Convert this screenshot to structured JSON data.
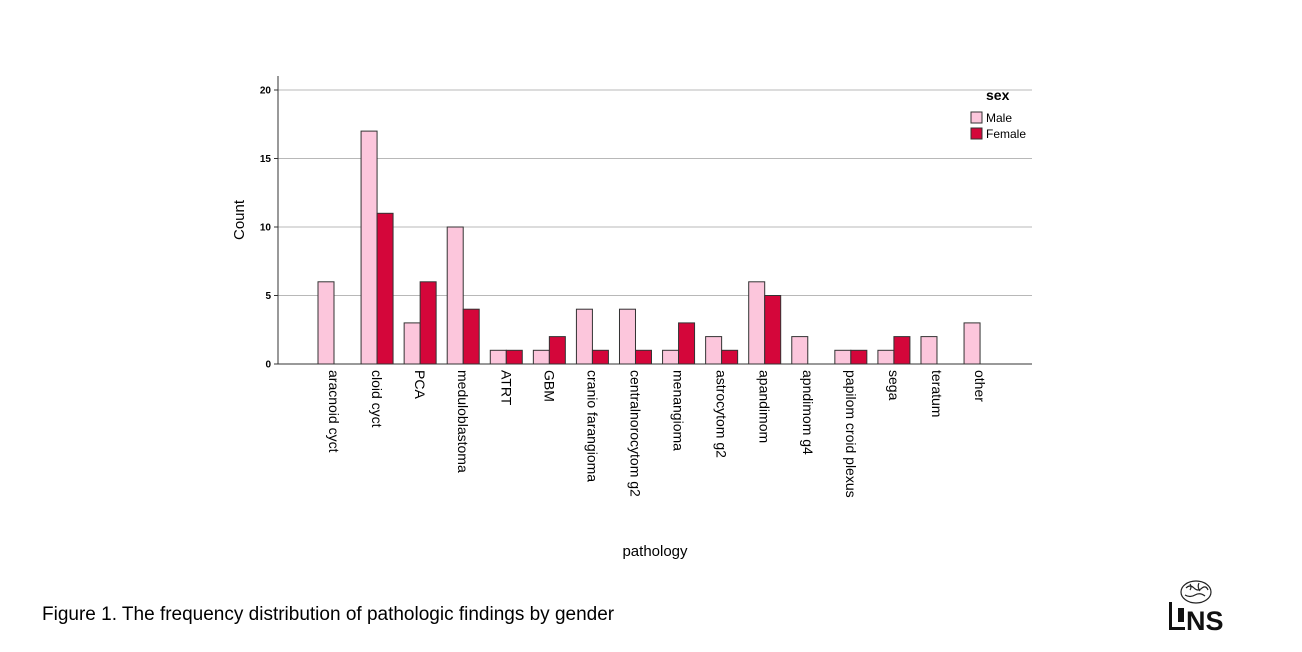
{
  "chart_data": {
    "type": "bar",
    "ylabel": "Count",
    "xlabel": "pathology",
    "ylim": [
      0,
      20
    ],
    "yticks": [
      0,
      5,
      10,
      15,
      20
    ],
    "grid": true,
    "legend": {
      "title": "sex",
      "position": "top-right"
    },
    "categories": [
      "aracnoid cyct",
      "cloid cyct",
      "PCA",
      "meduloblastoma",
      "ATRT",
      "GBM",
      "cranio farangioma",
      "centralnorocytom g2",
      "menangioma",
      "astrocytom g2",
      "apandimom",
      "apndimom g4",
      "papilom croid plexus",
      "sega",
      "teratum",
      "other"
    ],
    "series": [
      {
        "name": "Male",
        "color": "#fcc6dc",
        "values": [
          6,
          17,
          3,
          10,
          1,
          1,
          4,
          4,
          1,
          2,
          6,
          2,
          1,
          1,
          2,
          3
        ]
      },
      {
        "name": "Female",
        "color": "#d4063a",
        "values": [
          0,
          11,
          6,
          4,
          1,
          2,
          1,
          1,
          3,
          1,
          5,
          0,
          1,
          2,
          0,
          0
        ]
      }
    ]
  },
  "caption": {
    "label": "Figure 1.",
    "text": " The frequency distribution of pathologic findings by gender"
  },
  "logo": {
    "text": "NS",
    "icon": "brain-logo-icon"
  }
}
